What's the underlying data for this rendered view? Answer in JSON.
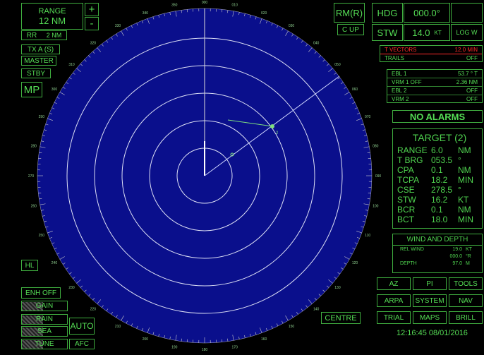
{
  "range": {
    "label": "RANGE",
    "value": "12 NM",
    "plus": "+",
    "minus": "-",
    "rr_label": "RR",
    "rr_value": "2 NM"
  },
  "left_buttons": {
    "tx": "TX A (S)",
    "master": "MASTER",
    "stby": "STBY",
    "mp": "MP",
    "hl": "HL",
    "enh": "ENH OFF"
  },
  "gain_controls": {
    "gain": "GAIN",
    "rain": "RAIN",
    "sea": "SEA",
    "tune": "TUNE",
    "auto": "AUTO",
    "afc": "AFC"
  },
  "top_right": {
    "rm": "RM(R)",
    "hdg_label": "HDG",
    "hdg_value": "000.0°",
    "cup": "C UP",
    "stw_label": "STW",
    "stw_value": "14.0",
    "stw_unit": "KT",
    "log": "LOG W"
  },
  "vectors": {
    "label": "T VECTORS",
    "value": "12.0",
    "unit": "MIN",
    "trails_label": "TRAILS",
    "trails_value": "OFF"
  },
  "ebl_vrm": [
    {
      "label": "EBL 1",
      "value": "53.7 ° T"
    },
    {
      "label": "VRM 1 OFF",
      "value": "2.36 NM"
    },
    {
      "label": "EBL 2",
      "value": "OFF"
    },
    {
      "label": "VRM 2",
      "value": "OFF"
    }
  ],
  "alarms": "NO ALARMS",
  "target": {
    "title": "TARGET (2)",
    "rows": [
      {
        "label": "RANGE",
        "value": "6.0",
        "unit": "NM"
      },
      {
        "label": "T BRG",
        "value": "053.5",
        "unit": "°"
      },
      {
        "label": "CPA",
        "value": "0.1",
        "unit": "NM"
      },
      {
        "label": "TCPA",
        "value": "18.2",
        "unit": "MIN"
      },
      {
        "label": "CSE",
        "value": "278.5",
        "unit": "°"
      },
      {
        "label": "STW",
        "value": "16.2",
        "unit": "KT"
      },
      {
        "label": "BCR",
        "value": "0.1",
        "unit": "NM"
      },
      {
        "label": "BCT",
        "value": "18.0",
        "unit": "MIN"
      }
    ]
  },
  "wind": {
    "title": "WIND AND DEPTH",
    "rows": [
      {
        "label": "REL WIND",
        "value": "19.0",
        "unit": "KT"
      },
      {
        "label": "",
        "value": "000.0",
        "unit": "°R"
      },
      {
        "label": "DEPTH",
        "value": "97.0",
        "unit": "M"
      }
    ]
  },
  "menu_buttons": [
    "AZ",
    "PI",
    "TOOLS",
    "ARPA",
    "SYSTEM",
    "NAV",
    "TRIAL",
    "MAPS",
    "BRILL"
  ],
  "centre": "CENTRE",
  "clock": "12:16:45 08/01/2016",
  "bearing_labels": [
    "000",
    "010",
    "020",
    "030",
    "040",
    "050",
    "060",
    "070",
    "080",
    "090",
    "100",
    "110",
    "120",
    "130",
    "140",
    "150",
    "160",
    "170",
    "180",
    "190",
    "200",
    "210",
    "220",
    "230",
    "240",
    "250",
    "260",
    "270",
    "280",
    "290",
    "300",
    "310",
    "320",
    "330",
    "340",
    "350"
  ],
  "colors": {
    "radar_fill": "#0a0f8c",
    "text_green": "#55dd55",
    "alert_red": "#ff2a2a"
  }
}
